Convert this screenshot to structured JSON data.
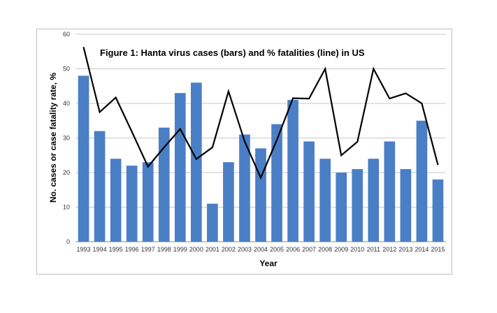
{
  "chart_data": {
    "type": "bar",
    "title": "Figure 1: Hanta virus cases (bars) and % fatalities (line) in US",
    "xlabel": "Year",
    "ylabel": "No. cases or case fatality rate, %",
    "ylim": [
      0,
      60
    ],
    "yticks": [
      "0",
      "10",
      "20",
      "30",
      "40",
      "50",
      "60"
    ],
    "grid": true,
    "categories": [
      "1993",
      "1994",
      "1995",
      "1996",
      "1997",
      "1998",
      "1999",
      "2000",
      "2001",
      "2002",
      "2003",
      "2004",
      "2005",
      "2006",
      "2007",
      "2008",
      "2009",
      "2010",
      "2011",
      "2012",
      "2013",
      "2014",
      "2015"
    ],
    "series": [
      {
        "kind": "bar",
        "color": "#4a7fc6",
        "values": [
          48,
          32,
          24,
          22,
          23,
          33,
          43,
          46,
          11,
          23,
          31,
          27,
          34,
          41,
          29,
          24,
          20,
          21,
          24,
          29,
          21,
          35,
          18
        ]
      },
      {
        "kind": "line",
        "color": "#000000",
        "values": [
          56.3,
          37.5,
          41.7,
          31.8,
          21.7,
          27.3,
          32.6,
          23.9,
          27.3,
          43.5,
          29.0,
          18.5,
          29.4,
          41.5,
          41.4,
          50.0,
          25.0,
          28.9,
          50.0,
          41.4,
          42.9,
          40.0,
          22.2
        ]
      }
    ]
  }
}
